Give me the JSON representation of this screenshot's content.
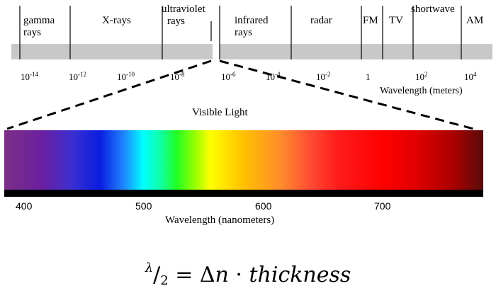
{
  "em_scale": {
    "bands": [
      {
        "id": "gamma",
        "line1": "gamma",
        "line2": "rays"
      },
      {
        "id": "xrays",
        "line1": "X-rays",
        "line2": ""
      },
      {
        "id": "uv",
        "line1": "ultraviolet",
        "line2": "rays"
      },
      {
        "id": "infrared",
        "line1": "infrared",
        "line2": "rays"
      },
      {
        "id": "radar",
        "line1": "radar",
        "line2": ""
      },
      {
        "id": "fm",
        "line1": "FM",
        "line2": ""
      },
      {
        "id": "tv",
        "line1": "TV",
        "line2": ""
      },
      {
        "id": "shortwave",
        "line1": "shortwave",
        "line2": ""
      },
      {
        "id": "am",
        "line1": "AM",
        "line2": ""
      }
    ],
    "ticks": [
      {
        "base": "10",
        "exp": "-14"
      },
      {
        "base": "10",
        "exp": "-12"
      },
      {
        "base": "10",
        "exp": "-10"
      },
      {
        "base": "10",
        "exp": "-8"
      },
      {
        "base": "10",
        "exp": "-6"
      },
      {
        "base": "10",
        "exp": "-4"
      },
      {
        "base": "10",
        "exp": "-2"
      },
      {
        "base": "1",
        "exp": ""
      },
      {
        "base": "10",
        "exp": "2"
      },
      {
        "base": "10",
        "exp": "4"
      }
    ],
    "axis_title": "Wavelength (meters)"
  },
  "visible": {
    "title": "Visible Light",
    "ticks": [
      "400",
      "500",
      "600",
      "700"
    ],
    "axis_title": "Wavelength (nanometers)"
  },
  "formula": {
    "lambda": "λ",
    "slash": "/",
    "two": "2",
    "equals": " = Δ",
    "n": "n",
    "dot": " · ",
    "thickness": "thickness"
  },
  "colors": {
    "scale_bar": "#c8c8c8",
    "nm_bar": "#000000"
  }
}
